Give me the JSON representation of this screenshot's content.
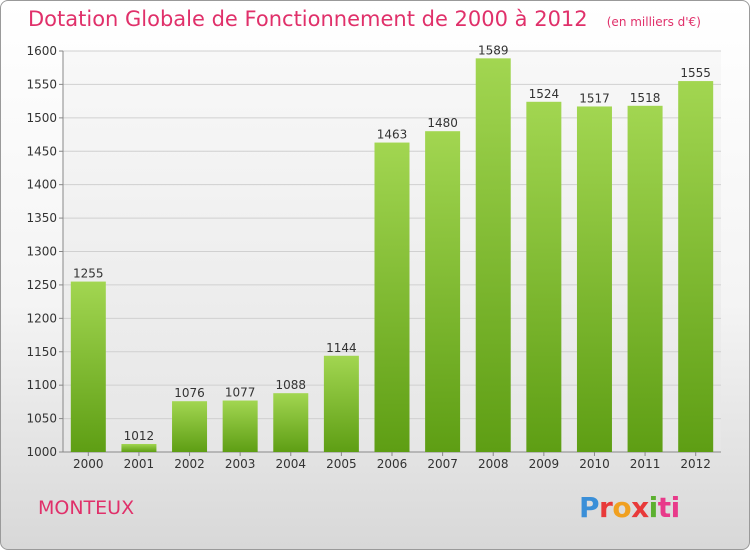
{
  "title": "Dotation Globale de Fonctionnement de 2000 à 2012",
  "unit_note": "(en milliers d'€)",
  "city": "MONTEUX",
  "logo": {
    "text": "Proxiti",
    "colors": [
      "#3a8fd8",
      "#e83a3a",
      "#f0a020",
      "#5cb030",
      "#e83a8a"
    ]
  },
  "chart_data": {
    "type": "bar",
    "title": "Dotation Globale de Fonctionnement de 2000 à 2012",
    "subtitle": "(en milliers d'€)",
    "categories": [
      "2000",
      "2001",
      "2002",
      "2003",
      "2004",
      "2005",
      "2006",
      "2007",
      "2008",
      "2009",
      "2010",
      "2011",
      "2012"
    ],
    "values": [
      1255,
      1012,
      1076,
      1077,
      1088,
      1144,
      1463,
      1480,
      1589,
      1524,
      1517,
      1518,
      1555
    ],
    "ylim": [
      1000,
      1600
    ],
    "yticks": [
      1000,
      1050,
      1100,
      1150,
      1200,
      1250,
      1300,
      1350,
      1400,
      1450,
      1500,
      1550,
      1600
    ],
    "grid": true,
    "bar_color": "#7fc13a",
    "xlabel": "",
    "ylabel": ""
  }
}
